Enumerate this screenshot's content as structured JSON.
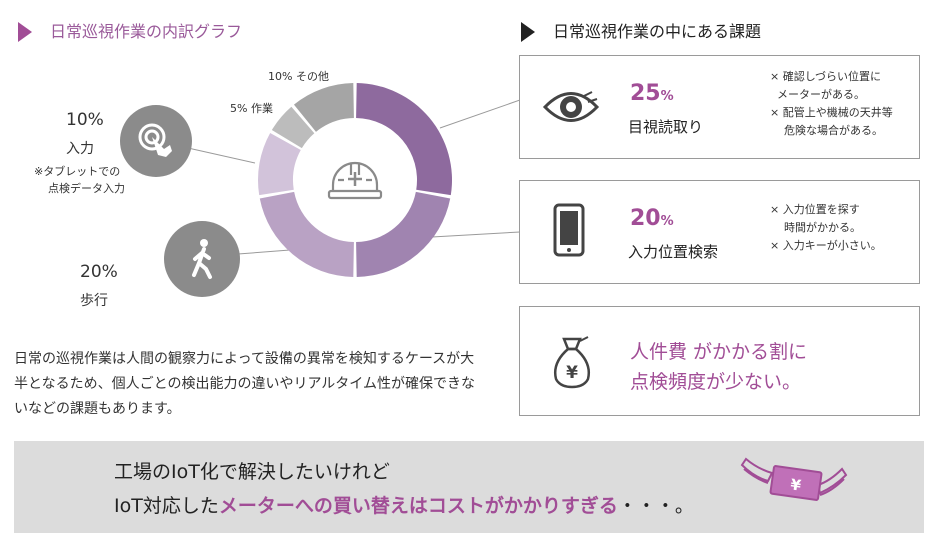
{
  "left_title": "日常巡視作業の内訳グラフ",
  "right_title": "日常巡視作業の中にある課題",
  "chart_data": {
    "type": "pie",
    "variant": "donut",
    "categories": [
      "目視読取り",
      "入力位置検索",
      "歩行",
      "入力",
      "作業",
      "その他"
    ],
    "values": [
      25,
      20,
      20,
      10,
      5,
      10
    ],
    "colors": [
      "#8e6a9e",
      "#a084b0",
      "#b9a2c4",
      "#d2c3da",
      "#bcbcbc",
      "#a5a5a5"
    ],
    "labels": {
      "input_pct": "10%",
      "input_name": "入力",
      "input_note_1": "※タブレットでの",
      "input_note_2": "点検データ入力",
      "walk_pct": "20%",
      "walk_name": "歩行",
      "work_label": "5% 作業",
      "other_label": "10% その他"
    },
    "center_icon": "hard-hat-icon"
  },
  "cards": [
    {
      "icon": "eye-icon",
      "pct": "25",
      "pct_unit": "%",
      "label": "目視読取り",
      "notes": "× 確認しづらい位置に\n  メーターがある。\n× 配管上や機械の天井等\n    危険な場合がある。"
    },
    {
      "icon": "tablet-icon",
      "pct": "20",
      "pct_unit": "%",
      "label": "入力位置検索",
      "notes": "× 入力位置を探す\n    時間がかかる。\n× 入力キーが小さい。"
    },
    {
      "icon": "money-bag-icon",
      "line1": "人件費 がかかる割に",
      "line2": "点検頻度が少ない。"
    }
  ],
  "paragraph": "日常の巡視作業は人間の観察力によって設備の異常を検知するケースが大半となるため、個人ごとの検出能力の違いやリアルタイム性が確保できないなどの課題もあります。",
  "banner": {
    "line1": "工場のIoT化で解決したいけれど",
    "line2_prefix": "IoT対応した",
    "line2_highlight": "メーターへの買い替えはコストがかかりすぎる",
    "line2_suffix": "・・・。",
    "icon": "flying-money-icon",
    "icon_symbol": "¥"
  },
  "colors": {
    "accent": "#a14d96",
    "title_purple": "#9a5a9a",
    "banner_bg": "#dcdcdc"
  }
}
